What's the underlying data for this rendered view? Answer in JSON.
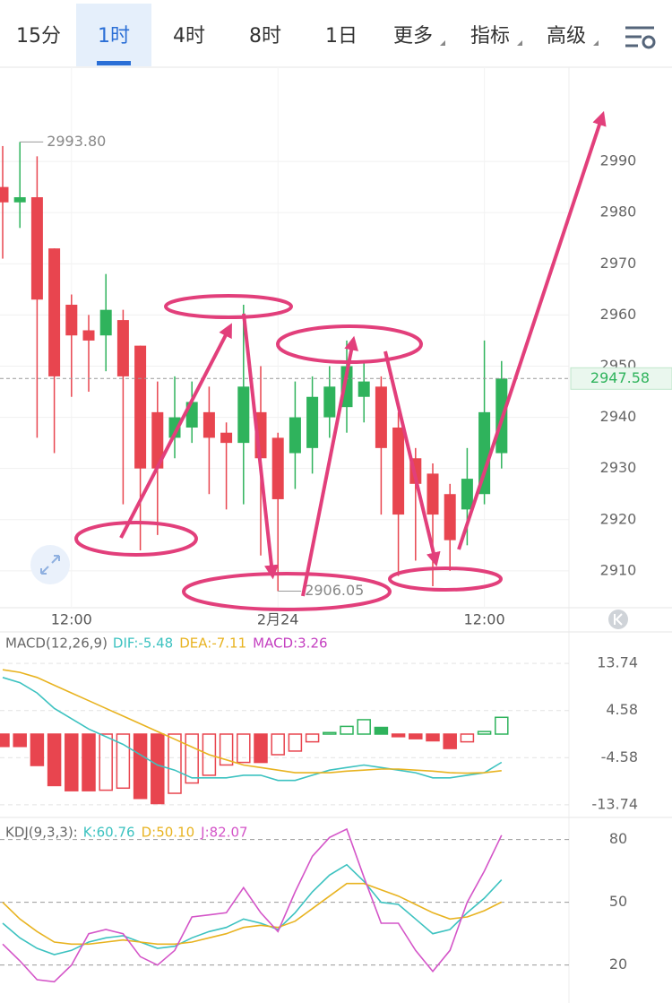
{
  "tabs": {
    "items": [
      "15分",
      "1时",
      "4时",
      "8时",
      "1日",
      "更多",
      "指标",
      "高级"
    ],
    "active": 1
  },
  "chart_data": [
    {
      "type": "candlestick",
      "categories": [
        null,
        null,
        null,
        null,
        "12:00",
        null,
        null,
        null,
        null,
        null,
        null,
        null,
        null,
        null,
        null,
        null,
        "2月24",
        null,
        null,
        null,
        null,
        null,
        null,
        null,
        null,
        null,
        null,
        null,
        "12:00",
        null
      ],
      "open": [
        2985,
        2982,
        2983,
        2973,
        2962,
        2957,
        2956,
        2959,
        2954,
        2941,
        2936,
        2938,
        2941,
        2937,
        2935,
        2941,
        2936,
        2933,
        2934,
        2940,
        2942,
        2944,
        2946,
        2938,
        2932,
        2929,
        2925,
        2922,
        2925,
        2933
      ],
      "high": [
        2993,
        2993.8,
        2991,
        2973,
        2964,
        2960,
        2968,
        2961,
        2954,
        2947,
        2948,
        2947,
        2946,
        2939,
        2962,
        2950,
        2937,
        2947,
        2948,
        2950,
        2955,
        2951,
        2948,
        2941,
        2934,
        2931,
        2927,
        2934,
        2955,
        2951
      ],
      "low": [
        2971,
        2977,
        2936,
        2933,
        2944,
        2945,
        2949,
        2923,
        2914,
        2917,
        2932,
        2935,
        2925,
        2922,
        2923,
        2913,
        2906.05,
        2926,
        2929,
        2936,
        2937,
        2939,
        2921,
        2909,
        2912,
        2907,
        2910,
        2915,
        2923,
        2930
      ],
      "close": [
        2982,
        2983,
        2963,
        2948,
        2956,
        2955,
        2961,
        2948,
        2930,
        2930,
        2940,
        2943,
        2936,
        2935,
        2946,
        2932,
        2924,
        2940,
        2944,
        2946,
        2950,
        2947,
        2934,
        2921,
        2927,
        2921,
        2916,
        2928,
        2941,
        2947.58
      ],
      "up_color": "#2fb35c",
      "down_color": "#e8454f",
      "ylim": [
        2902.8,
        3008.4
      ],
      "yticks": [
        2910,
        2920,
        2930,
        2940,
        2950,
        2960,
        2970,
        2980,
        2990
      ],
      "grid": true,
      "annotations": [
        {
          "index": 1,
          "value": 2993.8,
          "label": "2993.80"
        },
        {
          "index": 16,
          "value": 2906.05,
          "label": "2906.05"
        }
      ],
      "last_price": {
        "value": 2947.58,
        "label": "2947.58"
      }
    },
    {
      "type": "combo",
      "title": "MACD(12,26,9)",
      "ylim": [
        -15.5,
        15.5
      ],
      "yticks": [
        -13.74,
        -4.58,
        4.58,
        13.74
      ],
      "series": [
        {
          "name": "DIF",
          "label": "DIF:-5.48",
          "type": "line",
          "color": "#3cc2c0",
          "values": [
            11,
            10,
            8,
            5,
            3,
            1,
            -0.5,
            -2,
            -4,
            -6,
            -7,
            -8.5,
            -8.5,
            -8.5,
            -8,
            -8,
            -9,
            -9,
            -8,
            -7,
            -6.5,
            -6,
            -6.5,
            -7,
            -7.5,
            -8.5,
            -8.5,
            -8,
            -7.5,
            -5.48
          ]
        },
        {
          "name": "DEA",
          "label": "DEA:-7.11",
          "type": "line",
          "color": "#e8b320",
          "values": [
            12.5,
            12,
            11,
            9.5,
            8,
            6.5,
            5,
            3.5,
            2,
            0.5,
            -1,
            -2.5,
            -4,
            -5,
            -6,
            -6.5,
            -7,
            -7.5,
            -7.5,
            -7.5,
            -7.2,
            -7,
            -6.8,
            -6.8,
            -7,
            -7.2,
            -7.5,
            -7.6,
            -7.5,
            -7.11
          ]
        },
        {
          "name": "MACD",
          "label": "MACD:3.26",
          "type": "bar",
          "up_color": "#2fb35c",
          "down_color": "#e8454f",
          "values": [
            -2.4,
            -2.4,
            -6.1,
            -10,
            -11,
            -11,
            -10.9,
            -10.5,
            -12.5,
            -13.5,
            -11.5,
            -9.5,
            -8,
            -6,
            -5.5,
            -5.5,
            -4,
            -3.3,
            -1.5,
            0.3,
            1.5,
            2.8,
            1.3,
            -0.5,
            -0.9,
            -1.3,
            -2.8,
            -1.5,
            0.5,
            3.26
          ]
        }
      ]
    },
    {
      "type": "line",
      "title": "KDJ(9,3,3):",
      "ylim": [
        4,
        88
      ],
      "yticks": [
        20,
        50,
        80
      ],
      "series": [
        {
          "name": "K",
          "label": "K:60.76",
          "color": "#3cc2c0",
          "values": [
            40,
            33,
            28,
            25,
            27,
            31,
            33,
            34,
            31,
            28,
            29,
            33,
            36,
            38,
            42,
            40,
            37,
            45,
            55,
            63,
            68,
            60,
            50,
            49,
            42,
            35,
            37,
            45,
            52,
            60.76
          ]
        },
        {
          "name": "D",
          "label": "D:50.10",
          "color": "#e8b320",
          "values": [
            50,
            42,
            36,
            31,
            30,
            30,
            31,
            32,
            31,
            30,
            30,
            31,
            33,
            35,
            38,
            39,
            38,
            41,
            47,
            53,
            59,
            59,
            56,
            53,
            49,
            45,
            42,
            43,
            46,
            50.1
          ]
        },
        {
          "name": "J",
          "label": "J:82.07",
          "color": "#d455c8",
          "values": [
            30,
            22,
            13,
            12,
            20,
            35,
            37,
            35,
            24,
            20,
            27,
            43,
            44,
            45,
            57,
            45,
            36,
            55,
            72,
            81,
            85,
            62,
            40,
            40,
            27,
            17,
            27,
            50,
            65,
            82.07
          ]
        }
      ]
    }
  ]
}
